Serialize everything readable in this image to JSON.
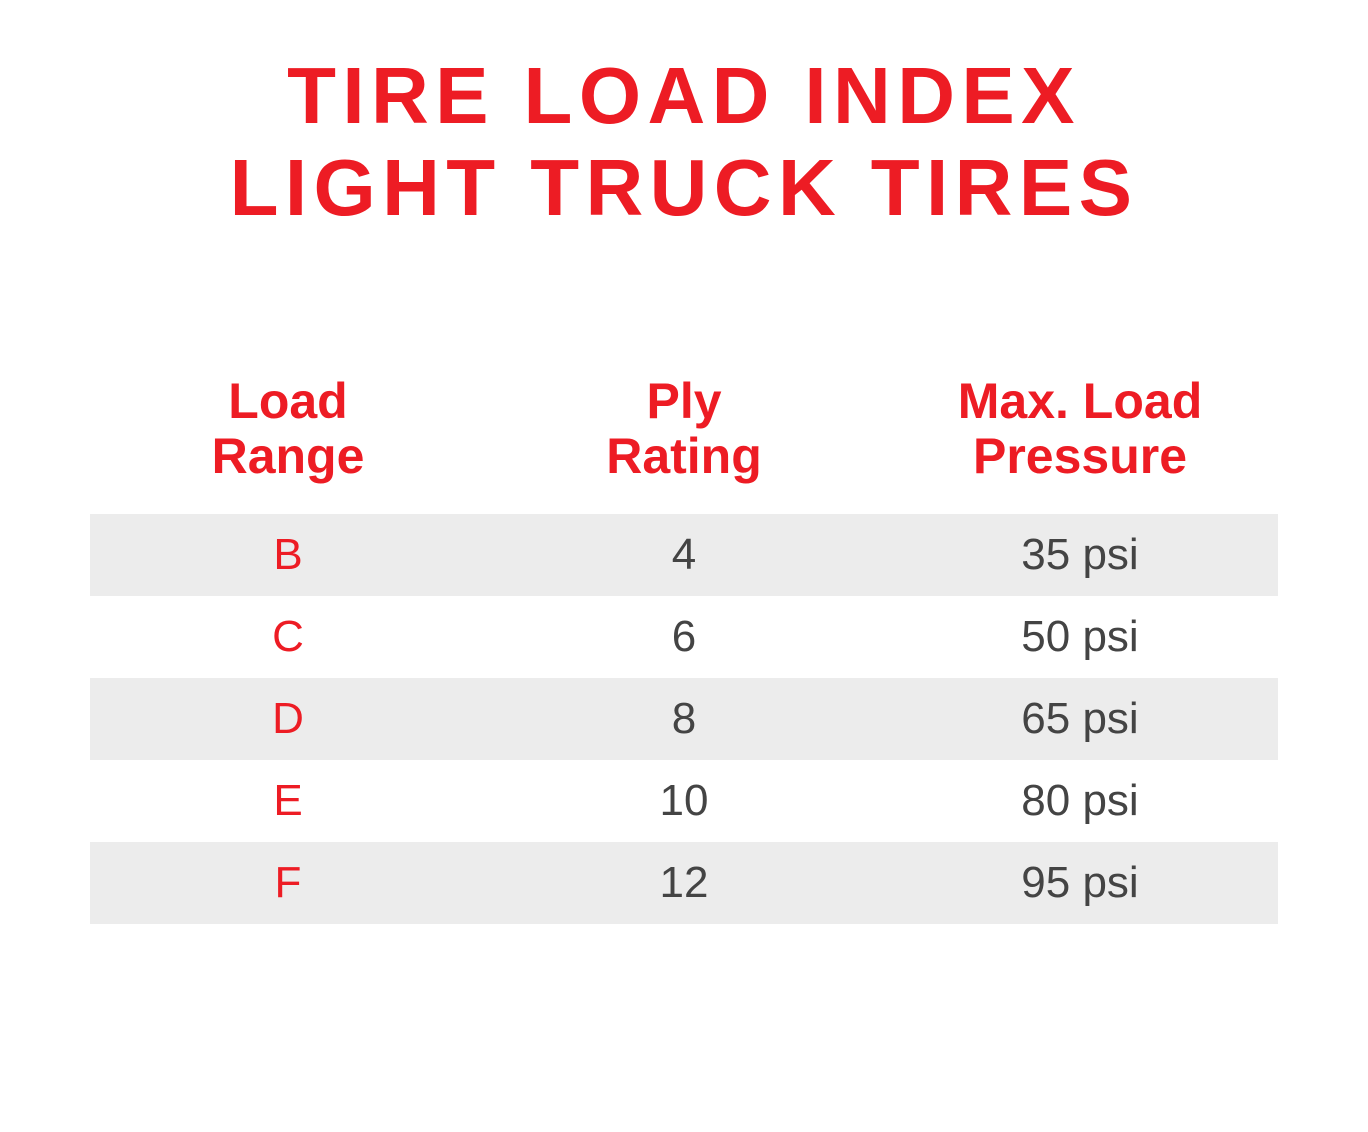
{
  "title": {
    "line1": "TIRE LOAD INDEX",
    "line2": "LIGHT TRUCK TIRES",
    "color": "#ed1c24",
    "fontsize": 80
  },
  "table": {
    "type": "table",
    "header_color": "#ed1c24",
    "header_fontsize": 50,
    "body_fontsize": 44,
    "load_range_color": "#ed1c24",
    "value_color": "#444444",
    "stripe_color": "#ececec",
    "background_color": "#ffffff",
    "columns": [
      {
        "label_line1": "Load",
        "label_line2": "Range"
      },
      {
        "label_line1": "Ply",
        "label_line2": "Rating"
      },
      {
        "label_line1": "Max. Load",
        "label_line2": "Pressure"
      }
    ],
    "rows": [
      {
        "load_range": "B",
        "ply_rating": "4",
        "max_pressure": "35 psi"
      },
      {
        "load_range": "C",
        "ply_rating": "6",
        "max_pressure": "50 psi"
      },
      {
        "load_range": "D",
        "ply_rating": "8",
        "max_pressure": "65 psi"
      },
      {
        "load_range": "E",
        "ply_rating": "10",
        "max_pressure": "80 psi"
      },
      {
        "load_range": "F",
        "ply_rating": "12",
        "max_pressure": "95 psi"
      }
    ]
  }
}
